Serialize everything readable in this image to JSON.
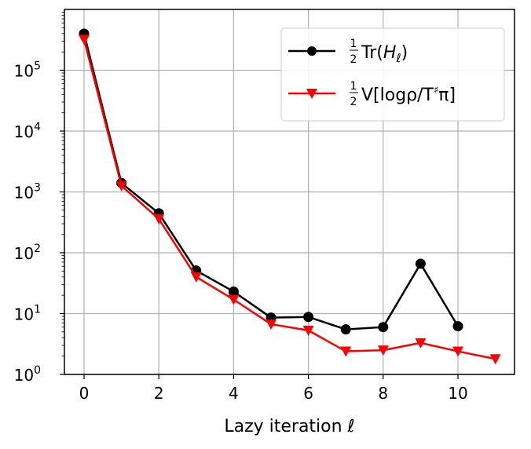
{
  "chart_data": {
    "type": "line",
    "xlabel": "Lazy iteration ℓ",
    "ylabel": "",
    "title": "",
    "yscale": "log",
    "xlim": [
      -0.5,
      11.5
    ],
    "ylim": [
      1,
      1000000
    ],
    "grid": true,
    "legend_position": "top-right",
    "x_ticks": [
      "0",
      "2",
      "4",
      "6",
      "8",
      "10"
    ],
    "y_ticks": [
      {
        "base": "10",
        "exp": "0"
      },
      {
        "base": "10",
        "exp": "1"
      },
      {
        "base": "10",
        "exp": "2"
      },
      {
        "base": "10",
        "exp": "3"
      },
      {
        "base": "10",
        "exp": "4"
      },
      {
        "base": "10",
        "exp": "5"
      }
    ],
    "series": [
      {
        "name": "½Tr(H_ℓ)",
        "legend": {
          "frac": "1/2",
          "main": "Tr(",
          "italic": "H",
          "sub": "ℓ",
          "tail": ")"
        },
        "color": "#000000",
        "marker": "circle",
        "x": [
          0,
          1,
          2,
          3,
          4,
          5,
          6,
          7,
          8,
          9,
          10
        ],
        "y": [
          400000,
          1400,
          445,
          51,
          23,
          8.6,
          8.8,
          5.5,
          6.0,
          66,
          6.2
        ]
      },
      {
        "name": "½V[logρ/T♯π]",
        "legend": {
          "frac": "1/2",
          "main": "V[logρ/T",
          "sup": "♯",
          "tail": "π]"
        },
        "color": "#ff0000",
        "marker": "triangle-down",
        "x": [
          0,
          1,
          2,
          3,
          4,
          5,
          6,
          7,
          8,
          9,
          10,
          11
        ],
        "y": [
          320000,
          1260,
          360,
          40,
          17,
          6.7,
          5.3,
          2.4,
          2.5,
          3.3,
          2.4,
          1.8
        ]
      }
    ]
  }
}
